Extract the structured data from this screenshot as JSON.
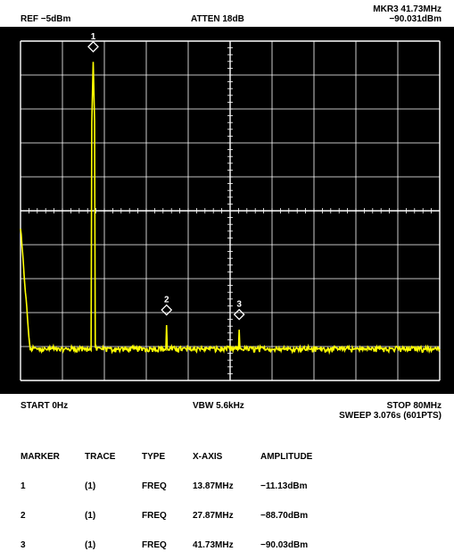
{
  "header": {
    "ref_level": "REF −5dBm",
    "attenuation": "ATTEN 18dB",
    "marker_readout_freq": "MKR3 41.73MHz",
    "marker_readout_amp": "−90.031dBm"
  },
  "footer": {
    "start": "START 0Hz",
    "vbw": "VBW 5.6kHz",
    "stop": "STOP 80MHz",
    "sweep": "SWEEP 3.076s (601PTS)"
  },
  "marker_table": {
    "headers": {
      "marker": "MARKER",
      "trace": "TRACE",
      "type": "TYPE",
      "x_axis": "X-AXIS",
      "amplitude": "AMPLITUDE"
    },
    "rows": [
      {
        "marker": "1",
        "trace": "(1)",
        "type": "FREQ",
        "x_axis": "13.87MHz",
        "amplitude": "−11.13dBm"
      },
      {
        "marker": "2",
        "trace": "(1)",
        "type": "FREQ",
        "x_axis": "27.87MHz",
        "amplitude": "−88.70dBm"
      },
      {
        "marker": "3",
        "trace": "(1)",
        "type": "FREQ",
        "x_axis": "41.73MHz",
        "amplitude": "−90.03dBm"
      }
    ]
  },
  "colors": {
    "trace": "#ffff00",
    "grid": "#ffffff",
    "screen_bg": "#000000"
  },
  "chart_data": {
    "type": "line",
    "x_range_mhz": [
      0,
      80
    ],
    "y_range_dbm": [
      -5,
      -105
    ],
    "x_divisions": 10,
    "y_divisions": 10,
    "noise_floor_dbm": -96,
    "peaks": [
      {
        "x_mhz": 13.87,
        "y_dbm": -11.13
      },
      {
        "x_mhz": 27.87,
        "y_dbm": -88.7
      },
      {
        "x_mhz": 41.73,
        "y_dbm": -90.03
      }
    ],
    "markers": [
      {
        "label": "1",
        "x_mhz": 13.87,
        "y_dbm": -11.13
      },
      {
        "label": "2",
        "x_mhz": 27.87,
        "y_dbm": -88.7
      },
      {
        "label": "3",
        "x_mhz": 41.73,
        "y_dbm": -90.03
      }
    ]
  }
}
